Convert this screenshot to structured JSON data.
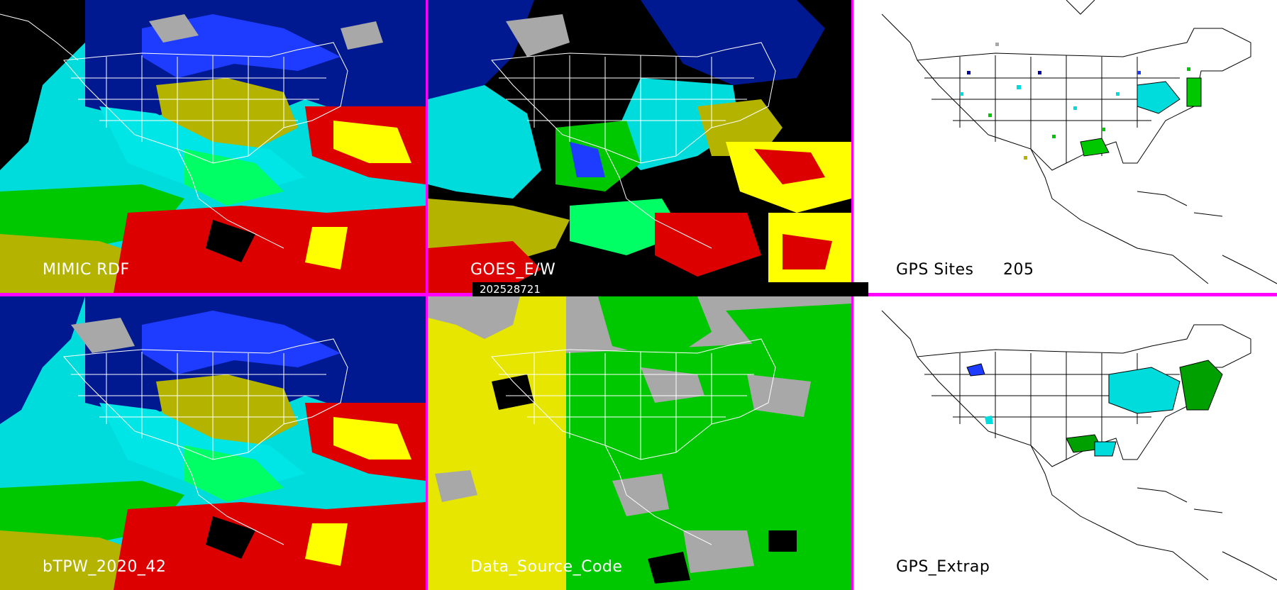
{
  "panels": [
    {
      "id": "mimic",
      "label": "MIMIC RDF"
    },
    {
      "id": "goes",
      "label": "GOES_E/W"
    },
    {
      "id": "gps-sites",
      "label": "GPS Sites",
      "count": "205"
    },
    {
      "id": "btpw",
      "label": "bTPW_2020_42"
    },
    {
      "id": "source",
      "label": "Data_Source_Code"
    },
    {
      "id": "gps-extrap",
      "label": "GPS_Extrap"
    }
  ],
  "timestamp": "202528721",
  "colors": {
    "divider": "#ff00ff",
    "palette": [
      "#000000",
      "#0000aa",
      "#1e3cff",
      "#00e6e6",
      "#00ff64",
      "#00c800",
      "#b4b400",
      "#ffff00",
      "#dc0000",
      "#b400b4",
      "#a8a8a8",
      "#ffffff"
    ]
  }
}
